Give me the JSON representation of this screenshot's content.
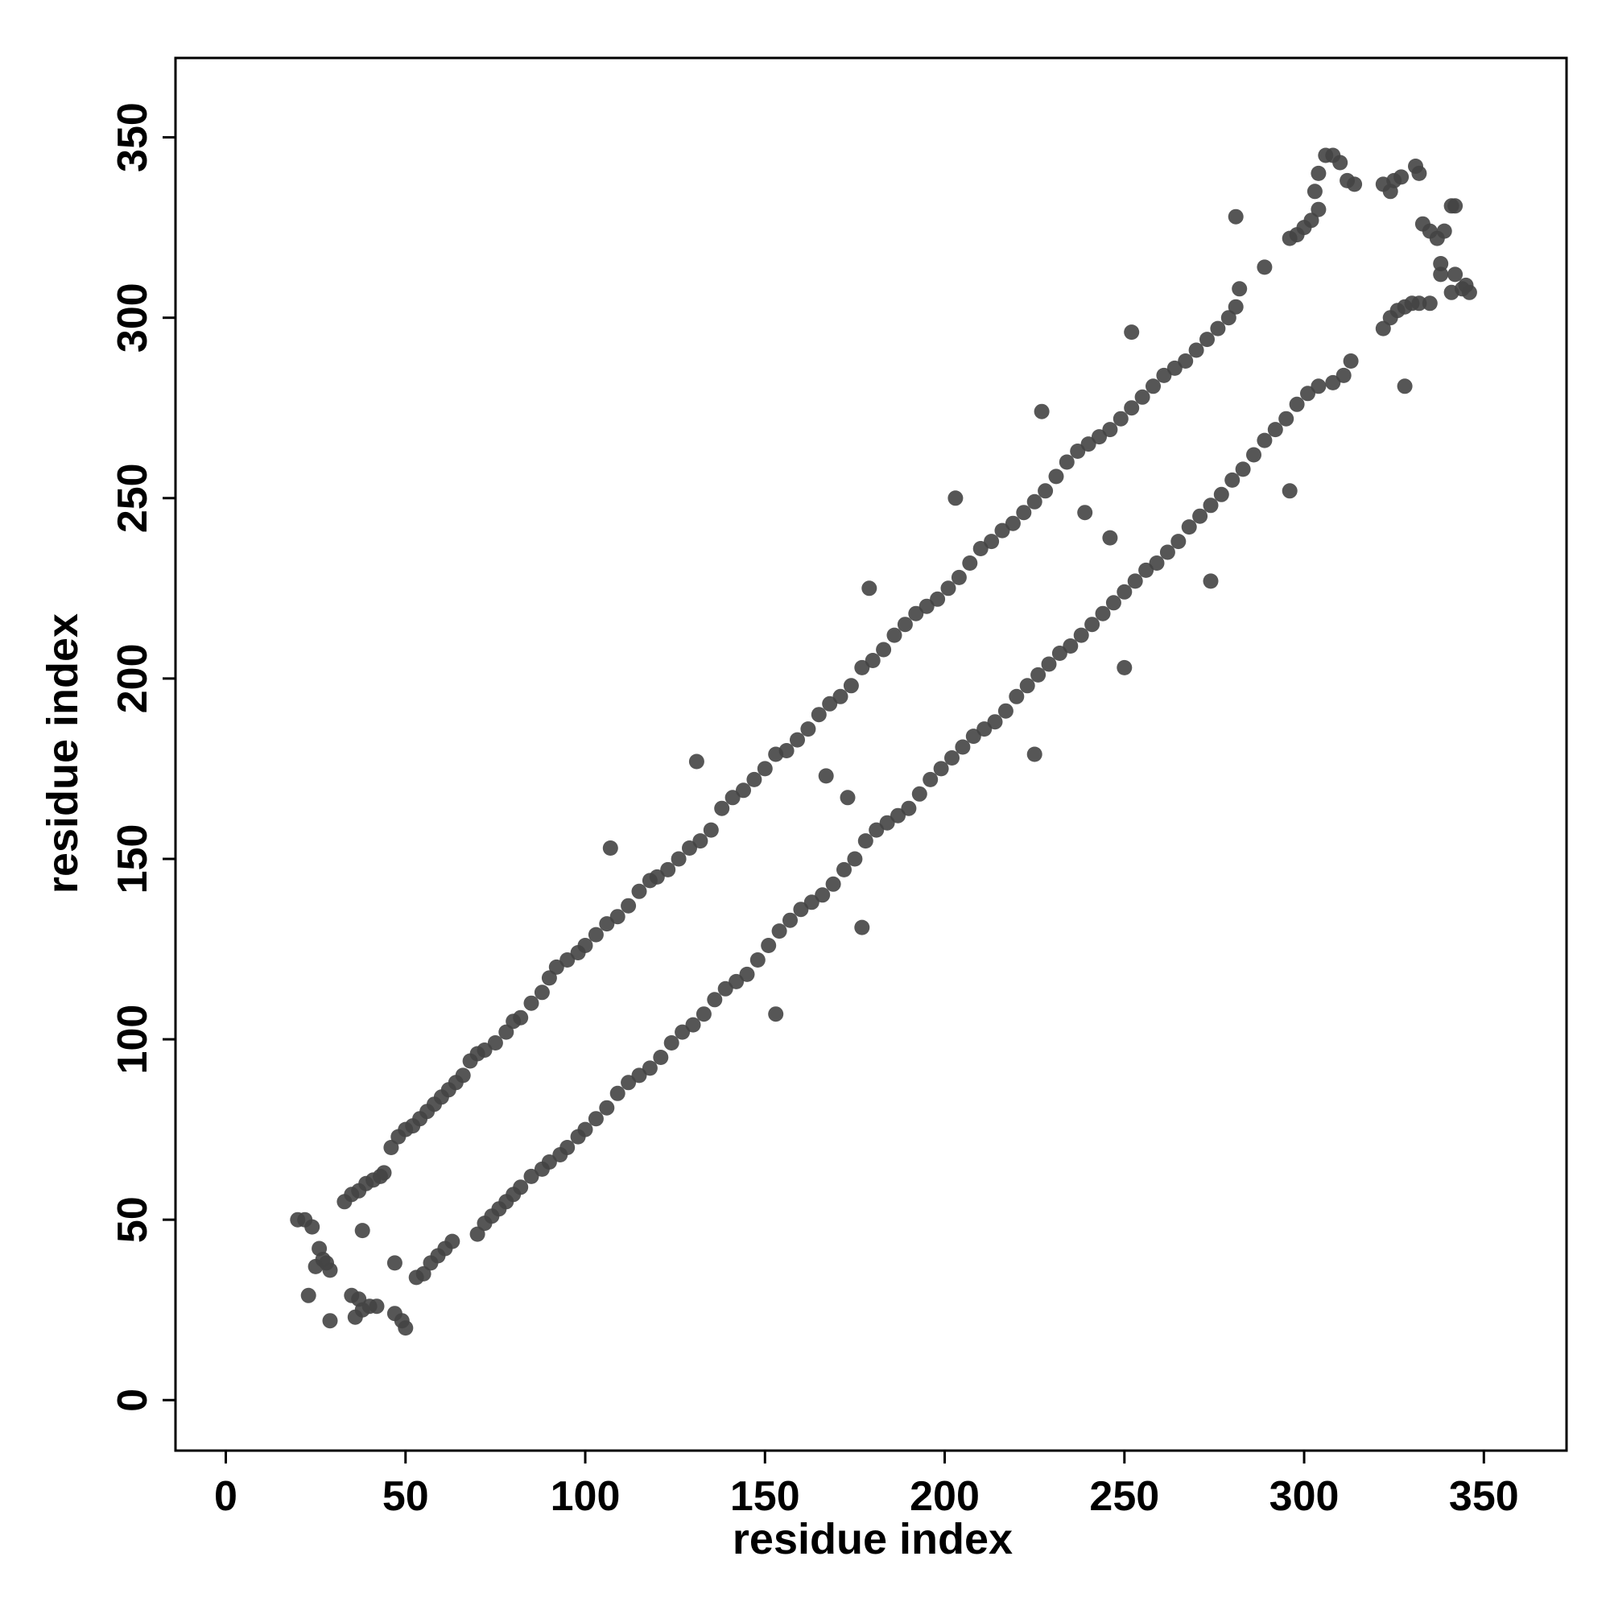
{
  "chart_data": {
    "type": "scatter",
    "xlabel": "residue index",
    "ylabel": "residue index",
    "xlim": [
      -14,
      373
    ],
    "ylim": [
      -14,
      372
    ],
    "xticks": [
      0,
      50,
      100,
      150,
      200,
      250,
      300,
      350
    ],
    "yticks": [
      0,
      50,
      100,
      150,
      200,
      250,
      300,
      350
    ],
    "grid": false,
    "point_color": "#444444",
    "series": [
      {
        "values": [
          [
            20,
            50
          ],
          [
            22,
            50
          ],
          [
            24,
            48
          ],
          [
            26,
            42
          ],
          [
            28,
            38
          ],
          [
            29,
            36
          ],
          [
            23,
            29
          ],
          [
            25,
            37
          ],
          [
            27,
            39
          ],
          [
            29,
            22
          ],
          [
            35,
            29
          ],
          [
            37,
            28
          ],
          [
            36,
            23
          ],
          [
            38,
            25
          ],
          [
            40,
            26
          ],
          [
            42,
            26
          ],
          [
            47,
            24
          ],
          [
            49,
            22
          ],
          [
            50,
            20
          ],
          [
            47,
            38
          ],
          [
            38,
            47
          ],
          [
            33,
            55
          ],
          [
            35,
            57
          ],
          [
            37,
            58
          ],
          [
            39,
            60
          ],
          [
            41,
            61
          ],
          [
            43,
            62
          ],
          [
            44,
            63
          ],
          [
            46,
            70
          ],
          [
            48,
            73
          ],
          [
            50,
            75
          ],
          [
            52,
            76
          ],
          [
            54,
            78
          ],
          [
            56,
            80
          ],
          [
            58,
            82
          ],
          [
            60,
            84
          ],
          [
            62,
            86
          ],
          [
            64,
            88
          ],
          [
            66,
            90
          ],
          [
            68,
            94
          ],
          [
            70,
            96
          ],
          [
            72,
            97
          ],
          [
            75,
            99
          ],
          [
            78,
            102
          ],
          [
            80,
            105
          ],
          [
            82,
            106
          ],
          [
            85,
            110
          ],
          [
            88,
            113
          ],
          [
            90,
            117
          ],
          [
            92,
            120
          ],
          [
            95,
            122
          ],
          [
            98,
            124
          ],
          [
            100,
            126
          ],
          [
            103,
            129
          ],
          [
            106,
            132
          ],
          [
            109,
            134
          ],
          [
            112,
            137
          ],
          [
            115,
            141
          ],
          [
            118,
            144
          ],
          [
            120,
            145
          ],
          [
            123,
            147
          ],
          [
            126,
            150
          ],
          [
            129,
            153
          ],
          [
            132,
            155
          ],
          [
            135,
            158
          ],
          [
            138,
            164
          ],
          [
            141,
            167
          ],
          [
            144,
            169
          ],
          [
            147,
            172
          ],
          [
            150,
            175
          ],
          [
            153,
            179
          ],
          [
            156,
            180
          ],
          [
            159,
            183
          ],
          [
            162,
            186
          ],
          [
            165,
            190
          ],
          [
            168,
            193
          ],
          [
            171,
            195
          ],
          [
            174,
            198
          ],
          [
            177,
            203
          ],
          [
            180,
            205
          ],
          [
            183,
            208
          ],
          [
            186,
            212
          ],
          [
            189,
            215
          ],
          [
            192,
            218
          ],
          [
            195,
            220
          ],
          [
            198,
            222
          ],
          [
            201,
            225
          ],
          [
            204,
            228
          ],
          [
            207,
            232
          ],
          [
            210,
            236
          ],
          [
            213,
            238
          ],
          [
            216,
            241
          ],
          [
            219,
            243
          ],
          [
            222,
            246
          ],
          [
            225,
            249
          ],
          [
            228,
            252
          ],
          [
            231,
            256
          ],
          [
            234,
            260
          ],
          [
            237,
            263
          ],
          [
            240,
            265
          ],
          [
            243,
            267
          ],
          [
            246,
            269
          ],
          [
            249,
            272
          ],
          [
            252,
            275
          ],
          [
            255,
            278
          ],
          [
            258,
            281
          ],
          [
            261,
            284
          ],
          [
            264,
            286
          ],
          [
            267,
            288
          ],
          [
            270,
            291
          ],
          [
            273,
            294
          ],
          [
            276,
            297
          ],
          [
            279,
            300
          ],
          [
            281,
            303
          ],
          [
            282,
            308
          ],
          [
            53,
            34
          ],
          [
            55,
            35
          ],
          [
            57,
            38
          ],
          [
            59,
            40
          ],
          [
            61,
            42
          ],
          [
            63,
            44
          ],
          [
            70,
            46
          ],
          [
            72,
            49
          ],
          [
            74,
            51
          ],
          [
            76,
            53
          ],
          [
            78,
            55
          ],
          [
            80,
            57
          ],
          [
            82,
            59
          ],
          [
            85,
            62
          ],
          [
            88,
            64
          ],
          [
            90,
            66
          ],
          [
            93,
            68
          ],
          [
            95,
            70
          ],
          [
            98,
            73
          ],
          [
            100,
            75
          ],
          [
            103,
            78
          ],
          [
            106,
            81
          ],
          [
            109,
            85
          ],
          [
            112,
            88
          ],
          [
            115,
            90
          ],
          [
            118,
            92
          ],
          [
            121,
            95
          ],
          [
            124,
            99
          ],
          [
            127,
            102
          ],
          [
            130,
            104
          ],
          [
            133,
            107
          ],
          [
            136,
            111
          ],
          [
            139,
            114
          ],
          [
            142,
            116
          ],
          [
            145,
            118
          ],
          [
            148,
            122
          ],
          [
            151,
            126
          ],
          [
            154,
            130
          ],
          [
            157,
            133
          ],
          [
            160,
            136
          ],
          [
            163,
            138
          ],
          [
            166,
            140
          ],
          [
            169,
            143
          ],
          [
            172,
            147
          ],
          [
            175,
            150
          ],
          [
            178,
            155
          ],
          [
            181,
            158
          ],
          [
            184,
            160
          ],
          [
            187,
            162
          ],
          [
            190,
            164
          ],
          [
            193,
            168
          ],
          [
            196,
            172
          ],
          [
            199,
            175
          ],
          [
            202,
            178
          ],
          [
            205,
            181
          ],
          [
            208,
            184
          ],
          [
            211,
            186
          ],
          [
            214,
            188
          ],
          [
            217,
            191
          ],
          [
            220,
            195
          ],
          [
            223,
            198
          ],
          [
            226,
            201
          ],
          [
            229,
            204
          ],
          [
            232,
            207
          ],
          [
            235,
            209
          ],
          [
            238,
            212
          ],
          [
            241,
            215
          ],
          [
            244,
            218
          ],
          [
            247,
            221
          ],
          [
            250,
            224
          ],
          [
            253,
            227
          ],
          [
            256,
            230
          ],
          [
            259,
            232
          ],
          [
            262,
            235
          ],
          [
            265,
            238
          ],
          [
            268,
            242
          ],
          [
            271,
            245
          ],
          [
            274,
            248
          ],
          [
            277,
            251
          ],
          [
            280,
            255
          ],
          [
            283,
            258
          ],
          [
            286,
            262
          ],
          [
            289,
            266
          ],
          [
            292,
            269
          ],
          [
            295,
            272
          ],
          [
            298,
            276
          ],
          [
            301,
            279
          ],
          [
            304,
            281
          ],
          [
            308,
            282
          ],
          [
            311,
            284
          ],
          [
            313,
            288
          ],
          [
            289,
            314
          ],
          [
            296,
            322
          ],
          [
            298,
            323
          ],
          [
            300,
            325
          ],
          [
            302,
            327
          ],
          [
            304,
            330
          ],
          [
            303,
            335
          ],
          [
            304,
            340
          ],
          [
            306,
            345
          ],
          [
            308,
            345
          ],
          [
            310,
            343
          ],
          [
            312,
            338
          ],
          [
            314,
            337
          ],
          [
            322,
            337
          ],
          [
            324,
            335
          ],
          [
            325,
            338
          ],
          [
            327,
            339
          ],
          [
            331,
            342
          ],
          [
            332,
            340
          ],
          [
            333,
            326
          ],
          [
            335,
            324
          ],
          [
            337,
            322
          ],
          [
            339,
            324
          ],
          [
            338,
            315
          ],
          [
            338,
            312
          ],
          [
            341,
            331
          ],
          [
            342,
            331
          ],
          [
            341,
            307
          ],
          [
            342,
            312
          ],
          [
            344,
            308
          ],
          [
            346,
            307
          ],
          [
            345,
            309
          ],
          [
            322,
            297
          ],
          [
            324,
            300
          ],
          [
            326,
            302
          ],
          [
            328,
            303
          ],
          [
            330,
            304
          ],
          [
            332,
            304
          ],
          [
            335,
            304
          ],
          [
            328,
            281
          ],
          [
            296,
            252
          ],
          [
            274,
            227
          ],
          [
            250,
            203
          ],
          [
            246,
            239
          ],
          [
            239,
            246
          ],
          [
            225,
            179
          ],
          [
            227,
            274
          ],
          [
            203,
            250
          ],
          [
            179,
            225
          ],
          [
            177,
            131
          ],
          [
            173,
            167
          ],
          [
            167,
            173
          ],
          [
            153,
            107
          ],
          [
            131,
            177
          ],
          [
            107,
            153
          ],
          [
            252,
            296
          ],
          [
            281,
            328
          ]
        ]
      }
    ]
  }
}
